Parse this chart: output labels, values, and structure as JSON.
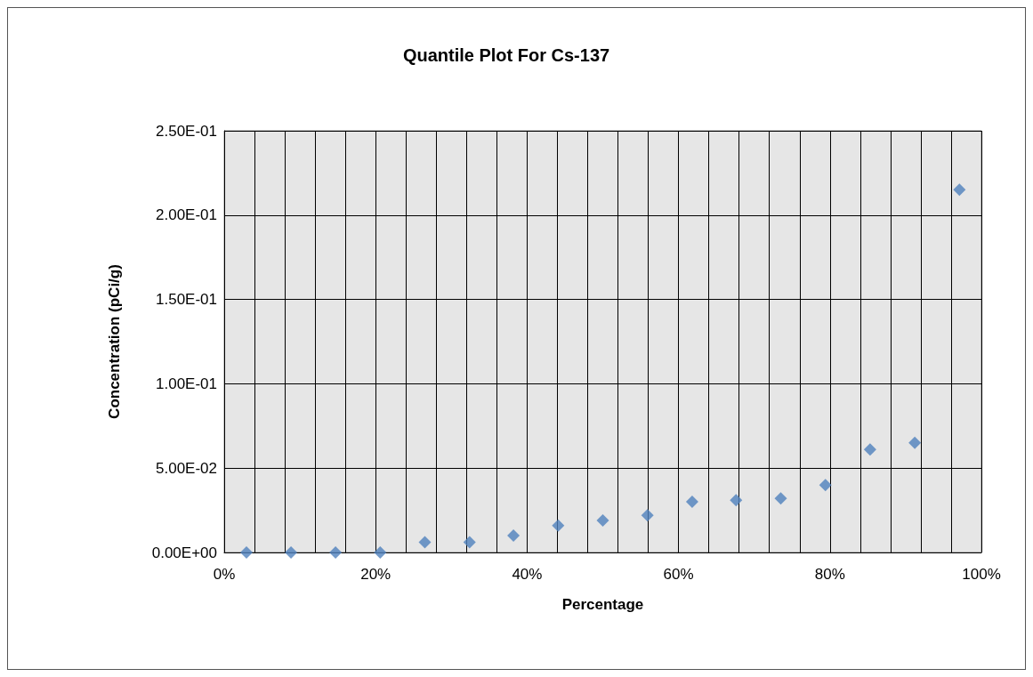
{
  "chart_data": {
    "type": "scatter",
    "title": "Quantile Plot For Cs-137",
    "xlabel": "Percentage",
    "ylabel": "Concentration (pCi/g)",
    "x": [
      0.0294,
      0.0882,
      0.147,
      0.206,
      0.265,
      0.324,
      0.382,
      0.441,
      0.5,
      0.559,
      0.618,
      0.676,
      0.735,
      0.794,
      0.853,
      0.912,
      0.971
    ],
    "series": [
      {
        "color": "#4f81bd",
        "values": [
          0,
          0,
          0,
          0,
          0.006,
          0.006,
          0.01,
          0.016,
          0.019,
          0.022,
          0.03,
          0.031,
          0.032,
          0.04,
          0.061,
          0.065,
          0.215
        ]
      }
    ],
    "xlim": [
      0,
      1
    ],
    "xticks": [
      {
        "value": 0,
        "label": "0%"
      },
      {
        "value": 0.04,
        "label": null
      },
      {
        "value": 0.08,
        "label": null
      },
      {
        "value": 0.12,
        "label": null
      },
      {
        "value": 0.16,
        "label": null
      },
      {
        "value": 0.2,
        "label": "20%"
      },
      {
        "value": 0.24,
        "label": null
      },
      {
        "value": 0.28,
        "label": null
      },
      {
        "value": 0.32,
        "label": null
      },
      {
        "value": 0.36,
        "label": null
      },
      {
        "value": 0.4,
        "label": "40%"
      },
      {
        "value": 0.44,
        "label": null
      },
      {
        "value": 0.48,
        "label": null
      },
      {
        "value": 0.52,
        "label": null
      },
      {
        "value": 0.56,
        "label": null
      },
      {
        "value": 0.6,
        "label": "60%"
      },
      {
        "value": 0.64,
        "label": null
      },
      {
        "value": 0.68,
        "label": null
      },
      {
        "value": 0.72,
        "label": null
      },
      {
        "value": 0.76,
        "label": null
      },
      {
        "value": 0.8,
        "label": "80%"
      },
      {
        "value": 0.84,
        "label": null
      },
      {
        "value": 0.88,
        "label": null
      },
      {
        "value": 0.92,
        "label": null
      },
      {
        "value": 0.96,
        "label": null
      },
      {
        "value": 1,
        "label": "100%"
      }
    ],
    "ylim": [
      0,
      0.25
    ],
    "yticks": [
      {
        "value": 0,
        "label": "0.00E+00"
      },
      {
        "value": 0.05,
        "label": "5.00E-02"
      },
      {
        "value": 0.1,
        "label": "1.00E-01"
      },
      {
        "value": 0.15,
        "label": "1.50E-01"
      },
      {
        "value": 0.2,
        "label": "2.00E-01"
      },
      {
        "value": 0.25,
        "label": "2.50E-01"
      }
    ],
    "grid": true,
    "marker": "diamond"
  }
}
